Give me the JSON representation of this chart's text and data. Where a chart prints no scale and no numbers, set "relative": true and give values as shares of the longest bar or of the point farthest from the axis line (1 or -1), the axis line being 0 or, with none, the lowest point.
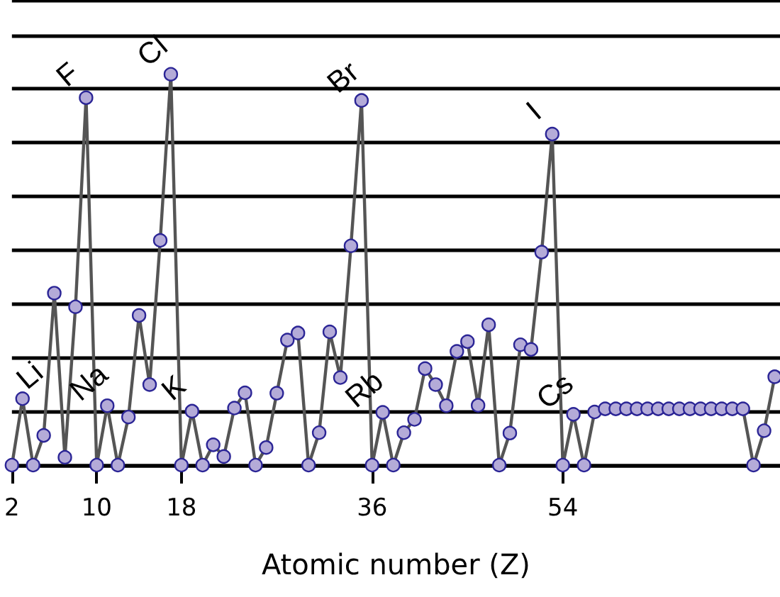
{
  "chart_data": {
    "type": "line",
    "relative": true,
    "xlabel": "Atomic number (Z)",
    "x": [
      2,
      3,
      4,
      5,
      6,
      7,
      8,
      9,
      10,
      11,
      12,
      13,
      14,
      15,
      16,
      17,
      18,
      19,
      20,
      21,
      22,
      23,
      24,
      25,
      26,
      27,
      28,
      29,
      30,
      31,
      32,
      33,
      34,
      35,
      36,
      37,
      38,
      39,
      40,
      41,
      42,
      43,
      44,
      45,
      46,
      47,
      48,
      49,
      50,
      51,
      52,
      53,
      54,
      55,
      56,
      57,
      58,
      59,
      60,
      61,
      62,
      63,
      64,
      65,
      66,
      67,
      68,
      69,
      70,
      71,
      72,
      73,
      74
    ],
    "series": [
      {
        "color": "#555555",
        "values": [
          0,
          0.17,
          0,
          0.076,
          0.44,
          0.02,
          0.405,
          0.94,
          0,
          0.152,
          0,
          0.123,
          0.383,
          0.206,
          0.575,
          1,
          0,
          0.138,
          0,
          0.052,
          0.022,
          0.146,
          0.185,
          0,
          0.045,
          0.184,
          0.32,
          0.338,
          0,
          0.083,
          0.341,
          0.224,
          0.561,
          0.933,
          0,
          0.135,
          0,
          0.083,
          0.117,
          0.247,
          0.206,
          0.152,
          0.291,
          0.316,
          0.153,
          0.359,
          0,
          0.082,
          0.308,
          0.296,
          0.545,
          0.847,
          0,
          0.13,
          0,
          0.136,
          0.144,
          0.144,
          0.144,
          0.144,
          0.144,
          0.144,
          0.144,
          0.144,
          0.144,
          0.144,
          0.144,
          0.144,
          0.144,
          0.144,
          0,
          0.088,
          0.226
        ]
      }
    ],
    "xlim": [
      2,
      74.5
    ],
    "xticks": [
      2,
      10,
      18,
      36,
      54
    ],
    "grid": "y",
    "marker": "circle",
    "line_style": "solid",
    "annotations": [
      {
        "text": "Li",
        "x": 3,
        "y": 0.17
      },
      {
        "text": "F",
        "x": 9,
        "y": 0.94
      },
      {
        "text": "Na",
        "x": 11,
        "y": 0.152
      },
      {
        "text": "Cl",
        "x": 17,
        "y": 1
      },
      {
        "text": "K",
        "x": 19,
        "y": 0.138
      },
      {
        "text": "Br",
        "x": 35,
        "y": 0.933
      },
      {
        "text": "Rb",
        "x": 37,
        "y": 0.135
      },
      {
        "text": "I",
        "x": 53,
        "y": 0.847
      },
      {
        "text": "Cs",
        "x": 55,
        "y": 0.13
      }
    ]
  }
}
